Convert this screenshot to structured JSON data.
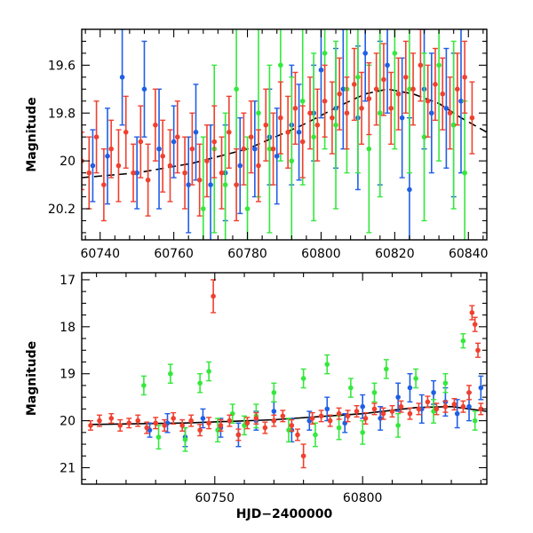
{
  "colors": {
    "blue": "#1f5fe6",
    "green": "#34e83c",
    "red": "#f0402e",
    "model": "#000000",
    "axis": "#000000"
  },
  "chart_data": [
    {
      "type": "scatter",
      "title": "",
      "xlabel": "",
      "ylabel": "Magnitude",
      "xlim": [
        60735,
        60845
      ],
      "ylim": [
        19.45,
        20.33
      ],
      "y_inverted": true,
      "x_ticks": [
        60740,
        60760,
        60780,
        60800,
        60820,
        60840
      ],
      "y_ticks": [
        19.6,
        19.8,
        20,
        20.2
      ],
      "y_tick_labels": [
        "19.6",
        "19.8",
        "20",
        "20.2"
      ],
      "grid": false,
      "model_curve": {
        "style": "dashed",
        "x": [
          60735,
          60750,
          60765,
          60780,
          60795,
          60805,
          60812,
          60818,
          60825,
          60832,
          60838,
          60845
        ],
        "y": [
          20.07,
          20.05,
          20.01,
          19.95,
          19.85,
          19.77,
          19.72,
          19.7,
          19.72,
          19.76,
          19.82,
          19.88
        ]
      },
      "series": [
        {
          "color": "blue",
          "x": [
            60738,
            60742,
            60746,
            60750,
            60752,
            60756,
            60760,
            60764,
            60766,
            60770,
            60774,
            60778,
            60782,
            60786,
            60788,
            60792,
            60794,
            60798,
            60800,
            60804,
            60806,
            60810,
            60812,
            60816,
            60818,
            60822,
            60824,
            60828,
            60830,
            60834,
            60836,
            60838
          ],
          "y": [
            20.02,
            19.98,
            19.65,
            20.05,
            19.7,
            19.95,
            19.92,
            20.1,
            19.88,
            20.1,
            20.05,
            20.02,
            19.95,
            19.9,
            19.98,
            19.85,
            19.88,
            19.8,
            19.62,
            19.78,
            19.7,
            19.82,
            19.55,
            19.8,
            19.6,
            19.82,
            20.12,
            19.7,
            19.8,
            19.78,
            19.85,
            19.75
          ],
          "err": [
            0.15,
            0.2,
            0.2,
            0.15,
            0.2,
            0.25,
            0.15,
            0.2,
            0.2,
            0.25,
            0.2,
            0.2,
            0.2,
            0.2,
            0.2,
            0.25,
            0.2,
            0.2,
            0.2,
            0.25,
            0.25,
            0.3,
            0.2,
            0.3,
            0.2,
            0.25,
            0.3,
            0.25,
            0.25,
            0.25,
            0.3,
            0.3
          ]
        },
        {
          "color": "green",
          "x": [
            60768,
            60771,
            60774,
            60777,
            60780,
            60783,
            60786,
            60789,
            60792,
            60795,
            60798,
            60801,
            60804,
            60807,
            60810,
            60813,
            60816,
            60820,
            60824,
            60828,
            60832,
            60836,
            60839
          ],
          "y": [
            20.2,
            19.95,
            20.1,
            19.7,
            20.2,
            19.8,
            19.95,
            19.6,
            20.0,
            19.75,
            19.9,
            19.55,
            19.85,
            19.7,
            19.65,
            19.95,
            19.8,
            19.55,
            19.7,
            19.9,
            19.6,
            19.85,
            20.05
          ],
          "err": [
            0.3,
            0.35,
            0.3,
            0.4,
            0.3,
            0.35,
            0.35,
            0.4,
            0.35,
            0.35,
            0.35,
            0.4,
            0.35,
            0.35,
            0.4,
            0.35,
            0.35,
            0.4,
            0.35,
            0.35,
            0.4,
            0.35,
            0.3
          ]
        },
        {
          "color": "red",
          "x": [
            60735,
            60737,
            60739,
            60741,
            60743,
            60745,
            60747,
            60749,
            60751,
            60753,
            60755,
            60757,
            60759,
            60761,
            60763,
            60765,
            60767,
            60769,
            60771,
            60773,
            60775,
            60777,
            60779,
            60781,
            60783,
            60785,
            60787,
            60789,
            60791,
            60793,
            60795,
            60797,
            60799,
            60801,
            60803,
            60805,
            60807,
            60809,
            60811,
            60813,
            60815,
            60817,
            60819,
            60821,
            60823,
            60825,
            60827,
            60829,
            60831,
            60833,
            60835,
            60837,
            60839,
            60841
          ],
          "y": [
            20.0,
            20.05,
            19.9,
            20.1,
            19.95,
            20.02,
            19.88,
            20.05,
            19.92,
            20.08,
            19.85,
            19.98,
            20.02,
            19.9,
            20.05,
            19.95,
            20.08,
            20.0,
            19.92,
            20.05,
            19.88,
            20.1,
            19.95,
            19.9,
            20.02,
            19.85,
            19.95,
            19.82,
            19.88,
            19.78,
            19.92,
            19.8,
            19.85,
            19.75,
            19.82,
            19.72,
            19.8,
            19.68,
            19.78,
            19.74,
            19.7,
            19.66,
            19.78,
            19.72,
            19.65,
            19.7,
            19.6,
            19.75,
            19.68,
            19.72,
            19.8,
            19.7,
            19.65,
            19.82
          ],
          "err": [
            0.12,
            0.15,
            0.15,
            0.15,
            0.12,
            0.15,
            0.15,
            0.12,
            0.15,
            0.15,
            0.15,
            0.15,
            0.15,
            0.15,
            0.15,
            0.15,
            0.15,
            0.15,
            0.15,
            0.15,
            0.15,
            0.15,
            0.15,
            0.15,
            0.15,
            0.15,
            0.15,
            0.15,
            0.15,
            0.15,
            0.15,
            0.15,
            0.15,
            0.15,
            0.15,
            0.15,
            0.15,
            0.15,
            0.15,
            0.15,
            0.15,
            0.15,
            0.15,
            0.15,
            0.15,
            0.15,
            0.15,
            0.15,
            0.15,
            0.15,
            0.15,
            0.15,
            0.15,
            0.15
          ]
        }
      ]
    },
    {
      "type": "scatter",
      "title": "",
      "xlabel": "HJD−2400000",
      "ylabel": "Magnitude",
      "xlim": [
        60705,
        60842
      ],
      "ylim": [
        16.85,
        21.35
      ],
      "y_inverted": true,
      "x_ticks": [
        60750,
        60800
      ],
      "y_ticks": [
        17,
        18,
        19,
        20,
        21
      ],
      "y_tick_labels": [
        "17",
        "18",
        "19",
        "20",
        "21"
      ],
      "grid": false,
      "model_curve": {
        "style": "solid",
        "x": [
          60708,
          60740,
          60770,
          60800,
          60818,
          60830,
          60842
        ],
        "y": [
          20.08,
          20.05,
          19.98,
          19.85,
          19.72,
          19.7,
          19.8
        ]
      },
      "series": [
        {
          "color": "blue",
          "x": [
            60728,
            60734,
            60740,
            60746,
            60752,
            60758,
            60764,
            60770,
            60776,
            60782,
            60788,
            60794,
            60800,
            60806,
            60812,
            60816,
            60820,
            60824,
            60828,
            60832,
            60836,
            60840
          ],
          "y": [
            20.2,
            20.05,
            20.35,
            19.95,
            20.15,
            20.3,
            20.0,
            19.8,
            20.2,
            20.0,
            19.75,
            20.05,
            19.7,
            19.95,
            19.5,
            19.3,
            19.75,
            19.4,
            19.6,
            19.85,
            19.7,
            19.3
          ],
          "err": [
            0.15,
            0.2,
            0.2,
            0.2,
            0.2,
            0.25,
            0.2,
            0.2,
            0.25,
            0.2,
            0.25,
            0.2,
            0.25,
            0.25,
            0.3,
            0.3,
            0.3,
            0.25,
            0.3,
            0.3,
            0.3,
            0.25
          ]
        },
        {
          "color": "green",
          "x": [
            60726,
            60731,
            60735,
            60740,
            60745,
            60748,
            60751,
            60756,
            60760,
            60764,
            60770,
            60775,
            60780,
            60784,
            60788,
            60792,
            60796,
            60800,
            60804,
            60808,
            60812,
            60818,
            60824,
            60828,
            60834,
            60838
          ],
          "y": [
            19.25,
            20.35,
            19.0,
            20.4,
            19.2,
            18.95,
            20.2,
            19.85,
            20.1,
            19.9,
            19.4,
            20.2,
            19.1,
            20.3,
            18.8,
            20.15,
            19.3,
            20.25,
            19.4,
            18.9,
            20.1,
            19.1,
            19.8,
            19.2,
            18.3,
            20.0
          ],
          "err": [
            0.2,
            0.25,
            0.2,
            0.25,
            0.2,
            0.2,
            0.25,
            0.2,
            0.2,
            0.25,
            0.2,
            0.25,
            0.2,
            0.25,
            0.2,
            0.25,
            0.2,
            0.25,
            0.2,
            0.2,
            0.25,
            0.2,
            0.25,
            0.2,
            0.15,
            0.2
          ]
        },
        {
          "color": "red",
          "x": [
            60708,
            60711,
            60715,
            60718,
            60721,
            60724,
            60727,
            60730,
            60733,
            60736,
            60739,
            60742,
            60745,
            60748,
            60749.5,
            60752,
            60755,
            60758,
            60761,
            60764,
            60767,
            60770,
            60773,
            60776,
            60778,
            60780,
            60783,
            60786,
            60789,
            60792,
            60795,
            60798,
            60801,
            60804,
            60807,
            60810,
            60813,
            60816,
            60819,
            60822,
            60825,
            60828,
            60831,
            60834,
            60836,
            60837,
            60838,
            60839,
            60840
          ],
          "y": [
            20.1,
            20.0,
            19.95,
            20.1,
            20.05,
            20.0,
            20.15,
            20.05,
            20.1,
            19.95,
            20.1,
            20.0,
            20.2,
            20.05,
            17.35,
            20.1,
            20.0,
            20.3,
            20.05,
            19.95,
            20.15,
            20.0,
            19.9,
            20.1,
            20.3,
            20.75,
            19.95,
            19.9,
            20.0,
            19.85,
            19.9,
            19.8,
            19.95,
            19.75,
            19.85,
            19.8,
            19.7,
            19.85,
            19.75,
            19.6,
            19.75,
            19.7,
            19.65,
            19.7,
            19.4,
            17.7,
            17.95,
            18.5,
            19.75
          ],
          "err": [
            0.1,
            0.12,
            0.1,
            0.12,
            0.1,
            0.12,
            0.12,
            0.12,
            0.12,
            0.12,
            0.12,
            0.12,
            0.12,
            0.12,
            0.35,
            0.12,
            0.12,
            0.12,
            0.12,
            0.12,
            0.12,
            0.12,
            0.12,
            0.12,
            0.12,
            0.25,
            0.12,
            0.12,
            0.12,
            0.12,
            0.12,
            0.12,
            0.12,
            0.12,
            0.12,
            0.12,
            0.12,
            0.12,
            0.12,
            0.12,
            0.12,
            0.12,
            0.12,
            0.12,
            0.15,
            0.15,
            0.15,
            0.15,
            0.12
          ]
        }
      ]
    }
  ]
}
